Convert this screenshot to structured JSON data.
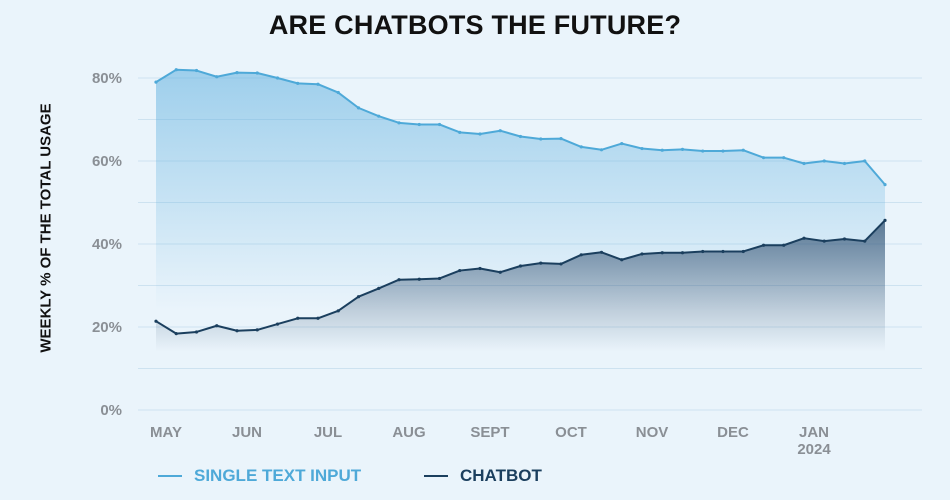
{
  "chart_data": {
    "type": "line",
    "title": "ARE CHATBOTS THE FUTURE?",
    "ylabel": "WEEKLY % OF THE TOTAL USAGE",
    "xlabel": "",
    "ylim": [
      0,
      80
    ],
    "yticks": [
      0,
      20,
      40,
      60,
      80
    ],
    "ytick_labels": [
      "0%",
      "20%",
      "40%",
      "60%",
      "80%"
    ],
    "x_tick_labels": [
      {
        "label": "MAY",
        "week": 0
      },
      {
        "label": "JUN",
        "week": 4
      },
      {
        "label": "JUL",
        "week": 8
      },
      {
        "label": "AUG",
        "week": 12
      },
      {
        "label": "SEPT",
        "week": 16
      },
      {
        "label": "OCT",
        "week": 20
      },
      {
        "label": "NOV",
        "week": 24
      },
      {
        "label": "DEC",
        "week": 28
      },
      {
        "label": "JAN\n2024",
        "week": 32
      }
    ],
    "grid": true,
    "legend_position": "bottom",
    "series": [
      {
        "name": "SINGLE TEXT INPUT",
        "color": "#4ea9d8",
        "values": [
          79,
          82,
          81.8,
          80.3,
          81.3,
          81.2,
          80,
          78.7,
          78.5,
          76.5,
          72.8,
          70.8,
          69.2,
          68.8,
          68.8,
          66.9,
          66.5,
          67.3,
          65.9,
          65.3,
          65.4,
          63.4,
          62.7,
          64.2,
          63,
          62.6,
          62.8,
          62.4,
          62.4,
          62.6,
          60.8,
          60.8,
          59.4,
          60,
          59.4,
          60,
          54.3
        ]
      },
      {
        "name": "CHATBOT",
        "color": "#1b3f5e",
        "values": [
          21.4,
          18.4,
          18.8,
          20.3,
          19.1,
          19.3,
          20.7,
          22.1,
          22.1,
          23.9,
          27.3,
          29.3,
          31.4,
          31.5,
          31.7,
          33.6,
          34.1,
          33.2,
          34.7,
          35.4,
          35.2,
          37.4,
          38,
          36.2,
          37.6,
          37.9,
          37.9,
          38.2,
          38.2,
          38.2,
          39.7,
          39.7,
          41.4,
          40.7,
          41.2,
          40.7,
          45.7
        ]
      }
    ]
  }
}
